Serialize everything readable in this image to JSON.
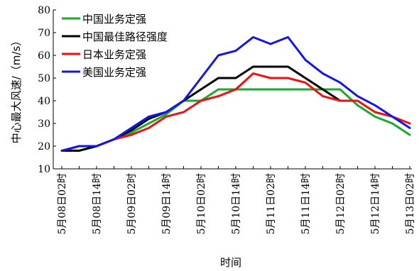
{
  "chart_data": {
    "type": "line",
    "title": "",
    "xlabel": "时间",
    "ylabel": "中心最大风速/（m/s）",
    "ylim": [
      10,
      80
    ],
    "yticks": [
      10,
      20,
      30,
      40,
      50,
      60,
      70,
      80
    ],
    "grid": false,
    "legend_position": "top-left",
    "categories": [
      "5月08日02时",
      "",
      "5月08日14时",
      "",
      "5月09日02时",
      "",
      "5月09日14时",
      "",
      "5月10日02时",
      "",
      "5月10日14时",
      "",
      "5月11日02时",
      "",
      "5月11日14时",
      "",
      "5月12日02时",
      "",
      "5月12日14时",
      "",
      "5月13日02时"
    ],
    "series": [
      {
        "name": "中国业务定强",
        "color": "#1aaa2e",
        "values": [
          18,
          18,
          20,
          23,
          26,
          30,
          34,
          40,
          40,
          45,
          45,
          45,
          45,
          45,
          45,
          45,
          45,
          38,
          33,
          30,
          25
        ]
      },
      {
        "name": "中国最佳路径强度",
        "color": "#000000",
        "values": [
          18,
          18,
          20,
          23,
          27,
          32,
          35,
          40,
          45,
          50,
          50,
          55,
          55,
          55,
          50,
          45,
          40,
          null,
          null,
          null,
          25
        ]
      },
      {
        "name": "日本业务定强",
        "color": "#ee1111",
        "values": [
          18,
          20,
          20,
          23,
          25,
          28,
          33,
          35,
          40,
          42,
          45,
          52,
          50,
          50,
          48,
          42,
          40,
          40,
          35,
          33,
          30
        ]
      },
      {
        "name": "美国业务定强",
        "color": "#1515e6",
        "values": [
          18,
          20,
          20,
          23,
          28,
          33,
          35,
          40,
          50,
          60,
          62,
          68,
          65,
          68,
          58,
          52,
          48,
          42,
          38,
          33,
          28
        ]
      }
    ]
  }
}
